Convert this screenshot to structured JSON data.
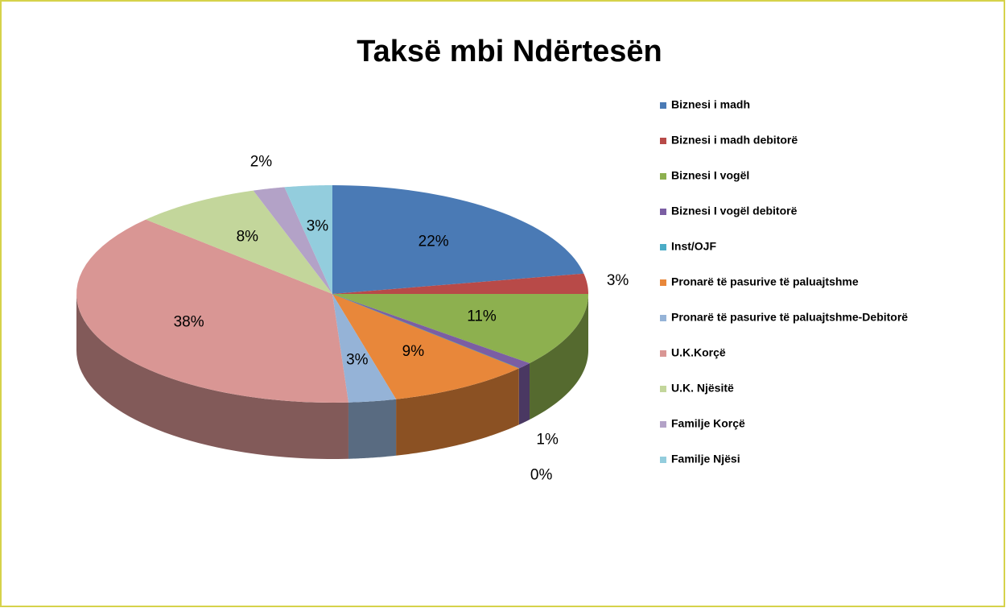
{
  "chart_data": {
    "type": "pie3d",
    "title": "Taksë mbi Ndërtesën",
    "categories": [
      "Biznesi i madh",
      "Biznesi i madh debitorë",
      "Biznesi I vogël",
      "Biznesi I vogël debitorë",
      "Inst/OJF",
      "Pronarë të pasurive të paluajtshme",
      "Pronarë të pasurive të paluajtshme-Debitorë",
      "U.K.Korçë",
      "U.K. Njësitë",
      "Familje Korçë",
      "Familje Njësi"
    ],
    "values": [
      22,
      3,
      11,
      1,
      0,
      9,
      3,
      38,
      8,
      2,
      3
    ],
    "value_labels": [
      "22%",
      "3%",
      "11%",
      "1%",
      "0%",
      "9%",
      "3%",
      "38%",
      "8%",
      "2%",
      "3%"
    ],
    "colors": [
      "#4a7ab5",
      "#b84a48",
      "#8db04f",
      "#7b5ea3",
      "#4bacc6",
      "#e8873a",
      "#95b3d7",
      "#d99694",
      "#c3d69b",
      "#b3a2c7",
      "#93cddd"
    ],
    "legend": "right"
  }
}
